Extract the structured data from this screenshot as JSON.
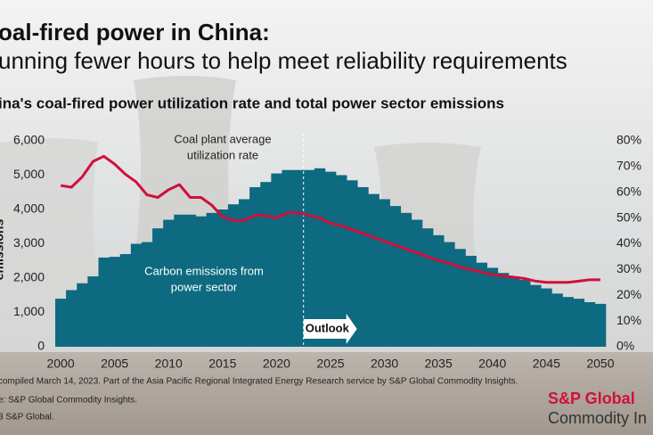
{
  "header": {
    "title": "oal-fired power in China:",
    "subtitle": "unning fewer hours to help meet reliability requirements"
  },
  "chart_data": {
    "type": "bar-line",
    "title": "ina's coal-fired power utilization rate and total power sector emissions",
    "y_label": "emissions",
    "x": [
      2000,
      2001,
      2002,
      2003,
      2004,
      2005,
      2006,
      2007,
      2008,
      2009,
      2010,
      2011,
      2012,
      2013,
      2014,
      2015,
      2016,
      2017,
      2018,
      2019,
      2020,
      2021,
      2022,
      2023,
      2024,
      2025,
      2026,
      2027,
      2028,
      2029,
      2030,
      2031,
      2032,
      2033,
      2034,
      2035,
      2036,
      2037,
      2038,
      2039,
      2040,
      2041,
      2042,
      2043,
      2044,
      2045,
      2046,
      2047,
      2048,
      2049,
      2050
    ],
    "xlim": [
      1999.5,
      2050.5
    ],
    "xticks": [
      2000,
      2005,
      2010,
      2015,
      2020,
      2025,
      2030,
      2035,
      2040,
      2045,
      2050
    ],
    "ylim": [
      0,
      6000
    ],
    "yticks": [
      0,
      {
        "value": 1000,
        "label": "1,000"
      },
      {
        "value": 2000,
        "label": "2,000"
      },
      {
        "value": 3000,
        "label": "3,000"
      },
      {
        "value": 4000,
        "label": "4,000"
      },
      {
        "value": 5000,
        "label": "5,000"
      },
      {
        "value": 6000,
        "label": "6,000"
      }
    ],
    "y2lim": [
      0,
      80
    ],
    "y2ticks": [
      {
        "value": 0,
        "label": "0%"
      },
      {
        "value": 10,
        "label": "10%"
      },
      {
        "value": 20,
        "label": "20%"
      },
      {
        "value": 30,
        "label": "30%"
      },
      {
        "value": 40,
        "label": "40%"
      },
      {
        "value": 50,
        "label": "50%"
      },
      {
        "value": 60,
        "label": "60%"
      },
      {
        "value": 70,
        "label": "70%"
      },
      {
        "value": 80,
        "label": "80%"
      }
    ],
    "series": [
      {
        "name": "Carbon emissions from power sector",
        "type": "bar",
        "axis": "y",
        "color": "#0d6a80",
        "label_lines": [
          "Carbon emissions from",
          "power sector"
        ],
        "values": [
          1400,
          1650,
          1850,
          2050,
          2600,
          2620,
          2700,
          3000,
          3050,
          3450,
          3700,
          3850,
          3850,
          3800,
          3900,
          4000,
          4150,
          4300,
          4650,
          4800,
          5050,
          5150,
          5150,
          5150,
          5200,
          5100,
          5000,
          4850,
          4650,
          4450,
          4300,
          4100,
          3900,
          3700,
          3450,
          3250,
          3050,
          2850,
          2650,
          2450,
          2300,
          2150,
          2050,
          1950,
          1800,
          1700,
          1550,
          1450,
          1400,
          1300,
          1250
        ]
      },
      {
        "name": "Coal plant average utilization rate",
        "type": "line",
        "axis": "y2",
        "color": "#d0103a",
        "label_lines": [
          "Coal plant average",
          "utilization rate"
        ],
        "values": [
          62.6,
          62,
          66,
          72,
          74,
          71,
          67,
          64,
          59,
          58,
          61,
          63,
          58,
          58,
          55,
          50.5,
          49,
          49,
          51,
          51,
          50,
          52,
          52,
          51,
          50,
          48,
          47,
          45.5,
          44,
          42.5,
          41,
          39.5,
          38,
          36.5,
          35,
          33.5,
          32.5,
          31,
          30,
          29,
          28,
          27.5,
          27,
          26.5,
          25.5,
          25,
          25,
          25,
          25.5,
          26,
          26
        ]
      }
    ],
    "outlook": {
      "label": "Outlook",
      "x": 2022.5
    }
  },
  "footer": {
    "note": "compiled March 14, 2023. Part of the Asia Pacific Regional Integrated Energy Research service by S&P Global Commodity Insights.",
    "source": "e: S&P Global Commodity Insights.",
    "copyright": "3 S&P Global.",
    "logo_top": "S&P Global",
    "logo_bottom": "Commodity In"
  }
}
